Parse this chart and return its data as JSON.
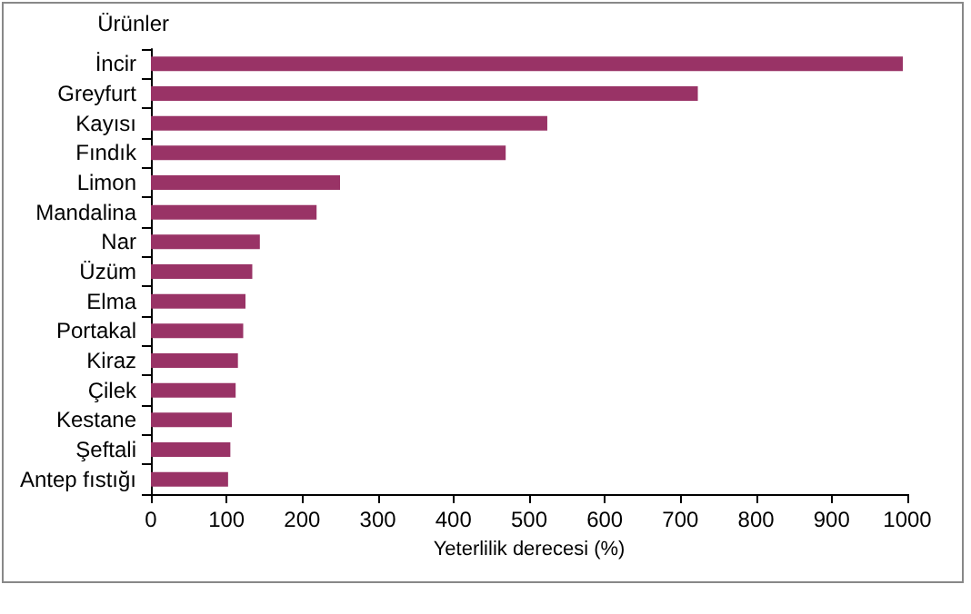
{
  "chart_data": {
    "type": "bar",
    "orientation": "horizontal",
    "ylabel": "Ürünler",
    "xlabel": "Yeterlilik derecesi (%)",
    "categories": [
      "İncir",
      "Greyfurt",
      "Kayısı",
      "Fındık",
      "Limon",
      "Mandalina",
      "Nar",
      "Üzüm",
      "Elma",
      "Portakal",
      "Kiraz",
      "Çilek",
      "Kestane",
      "Şeftali",
      "Antep fıstığı"
    ],
    "values": [
      994,
      723,
      524,
      469,
      250,
      219,
      144,
      134,
      125,
      122,
      115,
      112,
      107,
      105,
      102
    ],
    "color": "#993366",
    "xlim": [
      0,
      1000
    ],
    "xticks": [
      0,
      100,
      200,
      300,
      400,
      500,
      600,
      700,
      800,
      900,
      1000
    ]
  }
}
